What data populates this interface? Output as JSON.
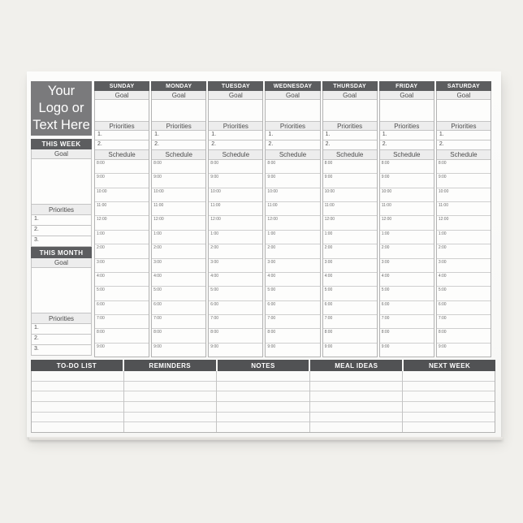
{
  "colors": {
    "backdrop": "#f1f0ec",
    "page_bg": "#fcfcfb",
    "header_dark": "#5c5d5f",
    "bottom_header_dark": "#515254",
    "logo_gray": "#7a7a7c",
    "label_bg": "#ededed",
    "text_dark": "#4d4d4d"
  },
  "logo": {
    "lines": [
      "Your",
      "Logo or",
      "Text Here"
    ]
  },
  "sidebar": {
    "this_week_label": "THIS WEEK",
    "this_month_label": "THIS MONTH",
    "goal_label": "Goal",
    "priorities_label": "Priorities",
    "priority_numbers": [
      "1.",
      "2.",
      "3."
    ]
  },
  "week": {
    "day_names": [
      "SUNDAY",
      "MONDAY",
      "TUESDAY",
      "WEDNESDAY",
      "THURSDAY",
      "FRIDAY",
      "SATURDAY"
    ],
    "goal_label": "Goal",
    "priorities_label": "Priorities",
    "priority_numbers": [
      "1.",
      "2."
    ],
    "schedule_label": "Schedule",
    "schedule_times": [
      "8:00",
      "9:00",
      "10:00",
      "11:00",
      "12:00",
      "1:00",
      "2:00",
      "3:00",
      "4:00",
      "5:00",
      "6:00",
      "7:00",
      "8:00",
      "9:00"
    ]
  },
  "bottom_sections": {
    "headers": [
      "TO-DO LIST",
      "REMINDERS",
      "NOTES",
      "MEAL IDEAS",
      "NEXT WEEK"
    ],
    "blank_row_count": 6
  }
}
